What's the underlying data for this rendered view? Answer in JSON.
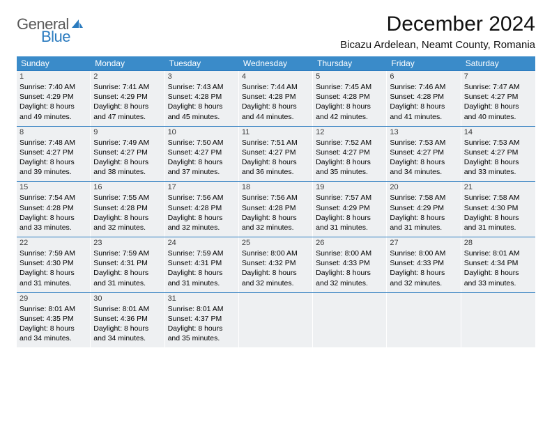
{
  "logo": {
    "text1": "General",
    "text2": "Blue"
  },
  "title": "December 2024",
  "location": "Bicazu Ardelean, Neamt County, Romania",
  "colors": {
    "header_bg": "#3a8bc9",
    "border": "#2b7bbf",
    "cell_bg": "#eef0f2",
    "logo_gray": "#5a5a5a",
    "logo_blue": "#2b7bbf"
  },
  "dow": [
    "Sunday",
    "Monday",
    "Tuesday",
    "Wednesday",
    "Thursday",
    "Friday",
    "Saturday"
  ],
  "weeks": [
    [
      {
        "n": "1",
        "sr": "7:40 AM",
        "ss": "4:29 PM",
        "dl": "8 hours and 49 minutes."
      },
      {
        "n": "2",
        "sr": "7:41 AM",
        "ss": "4:29 PM",
        "dl": "8 hours and 47 minutes."
      },
      {
        "n": "3",
        "sr": "7:43 AM",
        "ss": "4:28 PM",
        "dl": "8 hours and 45 minutes."
      },
      {
        "n": "4",
        "sr": "7:44 AM",
        "ss": "4:28 PM",
        "dl": "8 hours and 44 minutes."
      },
      {
        "n": "5",
        "sr": "7:45 AM",
        "ss": "4:28 PM",
        "dl": "8 hours and 42 minutes."
      },
      {
        "n": "6",
        "sr": "7:46 AM",
        "ss": "4:28 PM",
        "dl": "8 hours and 41 minutes."
      },
      {
        "n": "7",
        "sr": "7:47 AM",
        "ss": "4:27 PM",
        "dl": "8 hours and 40 minutes."
      }
    ],
    [
      {
        "n": "8",
        "sr": "7:48 AM",
        "ss": "4:27 PM",
        "dl": "8 hours and 39 minutes."
      },
      {
        "n": "9",
        "sr": "7:49 AM",
        "ss": "4:27 PM",
        "dl": "8 hours and 38 minutes."
      },
      {
        "n": "10",
        "sr": "7:50 AM",
        "ss": "4:27 PM",
        "dl": "8 hours and 37 minutes."
      },
      {
        "n": "11",
        "sr": "7:51 AM",
        "ss": "4:27 PM",
        "dl": "8 hours and 36 minutes."
      },
      {
        "n": "12",
        "sr": "7:52 AM",
        "ss": "4:27 PM",
        "dl": "8 hours and 35 minutes."
      },
      {
        "n": "13",
        "sr": "7:53 AM",
        "ss": "4:27 PM",
        "dl": "8 hours and 34 minutes."
      },
      {
        "n": "14",
        "sr": "7:53 AM",
        "ss": "4:27 PM",
        "dl": "8 hours and 33 minutes."
      }
    ],
    [
      {
        "n": "15",
        "sr": "7:54 AM",
        "ss": "4:28 PM",
        "dl": "8 hours and 33 minutes."
      },
      {
        "n": "16",
        "sr": "7:55 AM",
        "ss": "4:28 PM",
        "dl": "8 hours and 32 minutes."
      },
      {
        "n": "17",
        "sr": "7:56 AM",
        "ss": "4:28 PM",
        "dl": "8 hours and 32 minutes."
      },
      {
        "n": "18",
        "sr": "7:56 AM",
        "ss": "4:28 PM",
        "dl": "8 hours and 32 minutes."
      },
      {
        "n": "19",
        "sr": "7:57 AM",
        "ss": "4:29 PM",
        "dl": "8 hours and 31 minutes."
      },
      {
        "n": "20",
        "sr": "7:58 AM",
        "ss": "4:29 PM",
        "dl": "8 hours and 31 minutes."
      },
      {
        "n": "21",
        "sr": "7:58 AM",
        "ss": "4:30 PM",
        "dl": "8 hours and 31 minutes."
      }
    ],
    [
      {
        "n": "22",
        "sr": "7:59 AM",
        "ss": "4:30 PM",
        "dl": "8 hours and 31 minutes."
      },
      {
        "n": "23",
        "sr": "7:59 AM",
        "ss": "4:31 PM",
        "dl": "8 hours and 31 minutes."
      },
      {
        "n": "24",
        "sr": "7:59 AM",
        "ss": "4:31 PM",
        "dl": "8 hours and 31 minutes."
      },
      {
        "n": "25",
        "sr": "8:00 AM",
        "ss": "4:32 PM",
        "dl": "8 hours and 32 minutes."
      },
      {
        "n": "26",
        "sr": "8:00 AM",
        "ss": "4:33 PM",
        "dl": "8 hours and 32 minutes."
      },
      {
        "n": "27",
        "sr": "8:00 AM",
        "ss": "4:33 PM",
        "dl": "8 hours and 32 minutes."
      },
      {
        "n": "28",
        "sr": "8:01 AM",
        "ss": "4:34 PM",
        "dl": "8 hours and 33 minutes."
      }
    ],
    [
      {
        "n": "29",
        "sr": "8:01 AM",
        "ss": "4:35 PM",
        "dl": "8 hours and 34 minutes."
      },
      {
        "n": "30",
        "sr": "8:01 AM",
        "ss": "4:36 PM",
        "dl": "8 hours and 34 minutes."
      },
      {
        "n": "31",
        "sr": "8:01 AM",
        "ss": "4:37 PM",
        "dl": "8 hours and 35 minutes."
      },
      null,
      null,
      null,
      null
    ]
  ],
  "labels": {
    "sunrise": "Sunrise:",
    "sunset": "Sunset:",
    "daylight": "Daylight:"
  }
}
